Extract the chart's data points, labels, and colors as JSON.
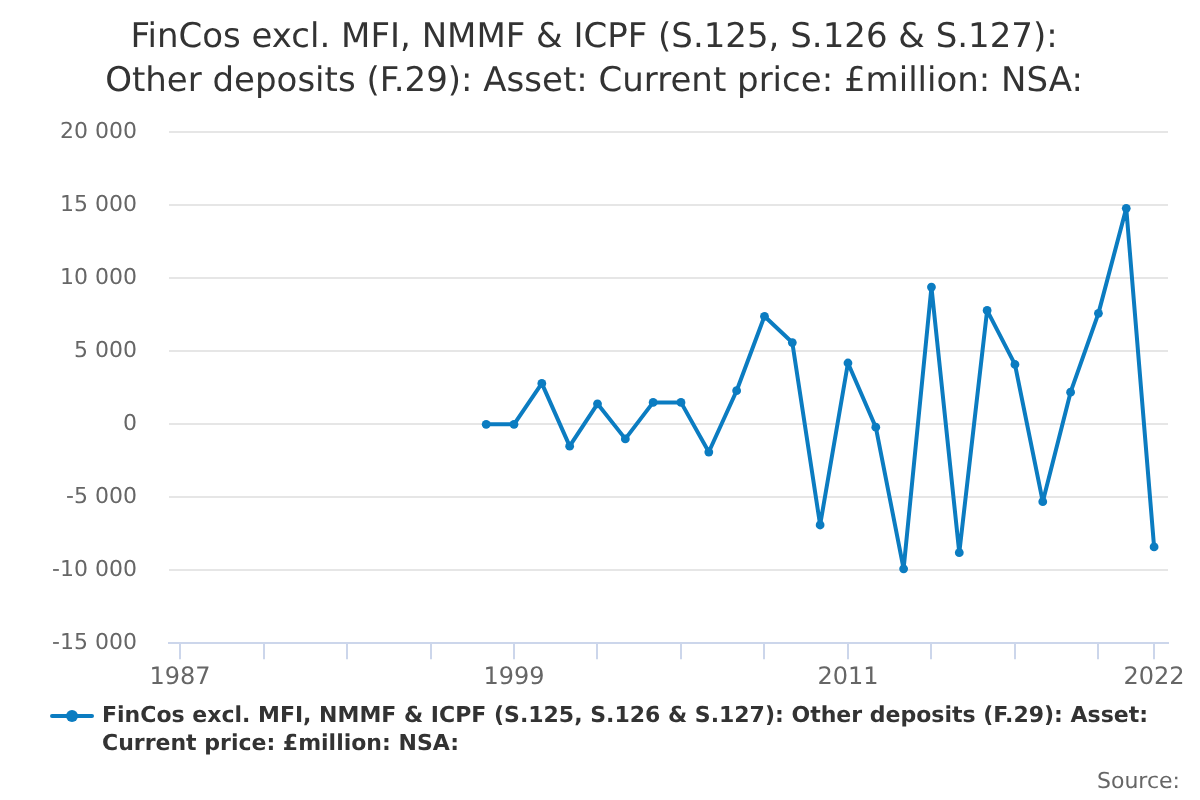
{
  "chart_data": {
    "type": "line",
    "title": "FinCos excl. MFI, NMMF & ICPF (S.125, S.126 & S.127): Other deposits (F.29): Asset: Current price: £million: NSA:",
    "x": [
      1998,
      1999,
      2000,
      2001,
      2002,
      2003,
      2004,
      2005,
      2006,
      2007,
      2008,
      2009,
      2010,
      2011,
      2012,
      2013,
      2014,
      2015,
      2016,
      2017,
      2018,
      2019,
      2020,
      2021,
      2022
    ],
    "series": [
      {
        "name": "FinCos excl. MFI, NMMF & ICPF (S.125, S.126 & S.127): Other deposits (F.29): Asset: Current price: £million: NSA:",
        "color": "#0b7cc1",
        "values": [
          0,
          0,
          2800,
          -1500,
          1400,
          -1000,
          1500,
          1500,
          -1900,
          2300,
          7400,
          5600,
          -6900,
          4200,
          -200,
          -9900,
          9400,
          -8800,
          7800,
          4100,
          -5300,
          2200,
          7600,
          14800,
          -8400
        ]
      }
    ],
    "xlim": [
      1986.6,
      2022.5
    ],
    "xticks": [
      1987,
      {
        "value": 1990,
        "label": null
      },
      {
        "value": 1993,
        "label": null
      },
      {
        "value": 1996,
        "label": null
      },
      1999,
      {
        "value": 2002,
        "label": null
      },
      {
        "value": 2005,
        "label": null
      },
      {
        "value": 2008,
        "label": null
      },
      2011,
      {
        "value": 2014,
        "label": null
      },
      {
        "value": 2017,
        "label": null
      },
      {
        "value": 2020,
        "label": null
      },
      2022
    ],
    "ylim": [
      -15000,
      20000
    ],
    "yticks": [
      {
        "value": -15000,
        "label": "-15 000"
      },
      {
        "value": -10000,
        "label": "-10 000"
      },
      {
        "value": -5000,
        "label": "-5 000"
      },
      0,
      {
        "value": 5000,
        "label": "5 000"
      },
      {
        "value": 10000,
        "label": "10 000"
      },
      {
        "value": 15000,
        "label": "15 000"
      },
      {
        "value": 20000,
        "label": "20 000"
      }
    ],
    "grid": "y",
    "legend": "bottom",
    "marker": "circle",
    "annotations": [
      "Source:"
    ]
  }
}
